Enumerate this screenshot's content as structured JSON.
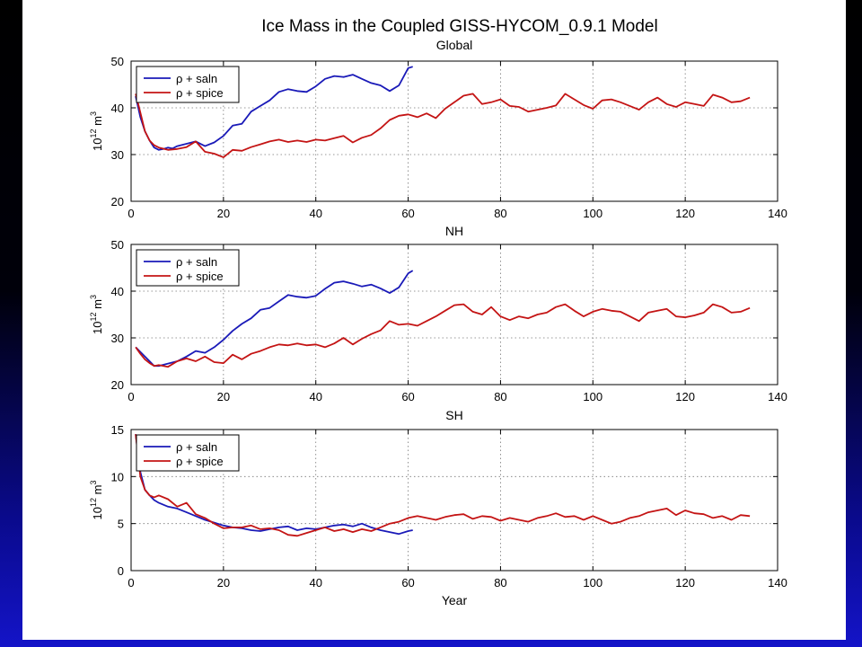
{
  "figure": {
    "title": "Ice Mass in the Coupled GISS-HYCOM_0.9.1 Model"
  },
  "colors": {
    "saln": "#1a1ab8",
    "spice": "#c41414",
    "grid": "#777777",
    "background_outer": "#000000",
    "background_outer_bottom": "#1414c8",
    "figure_background": "#ffffff"
  },
  "chart_data": [
    {
      "type": "line",
      "title": "Global",
      "xlabel": "",
      "ylabel": "10^12 m^3",
      "xlim": [
        0,
        140
      ],
      "ylim": [
        20,
        50
      ],
      "xticks": [
        0,
        20,
        40,
        60,
        80,
        100,
        120,
        140
      ],
      "yticks": [
        20,
        30,
        40,
        50
      ],
      "grid": true,
      "legend_position": "top-left",
      "series": [
        {
          "name": "ρ + saln",
          "color": "saln",
          "x": [
            1,
            2,
            3,
            4,
            5,
            6,
            7,
            8,
            9,
            10,
            12,
            14,
            16,
            18,
            20,
            22,
            24,
            26,
            28,
            30,
            32,
            34,
            36,
            38,
            40,
            42,
            44,
            46,
            48,
            50,
            52,
            54,
            56,
            58,
            60,
            61
          ],
          "y": [
            42.5,
            38,
            35,
            33,
            31.5,
            31,
            31.2,
            31.5,
            31.3,
            31.8,
            32.3,
            32.8,
            31.8,
            32.6,
            34,
            36.2,
            36.6,
            39.2,
            40.4,
            41.6,
            43.4,
            44,
            43.6,
            43.4,
            44.6,
            46.2,
            46.8,
            46.6,
            47.1,
            46.2,
            45.3,
            44.8,
            43.6,
            44.8,
            48.5,
            48.8
          ]
        },
        {
          "name": "ρ + spice",
          "color": "spice",
          "x": [
            1,
            2,
            3,
            4,
            5,
            6,
            8,
            10,
            12,
            14,
            16,
            18,
            20,
            22,
            24,
            26,
            28,
            30,
            32,
            34,
            36,
            38,
            40,
            42,
            44,
            46,
            48,
            50,
            52,
            54,
            56,
            58,
            60,
            62,
            64,
            66,
            68,
            70,
            72,
            74,
            76,
            78,
            80,
            82,
            84,
            86,
            88,
            90,
            92,
            94,
            96,
            98,
            100,
            102,
            104,
            106,
            108,
            110,
            112,
            114,
            116,
            118,
            120,
            122,
            124,
            126,
            128,
            130,
            132,
            134
          ],
          "y": [
            43,
            39,
            35,
            33,
            32,
            31.5,
            31,
            31.2,
            31.6,
            32.8,
            30.6,
            30.2,
            29.4,
            31,
            30.8,
            31.6,
            32.2,
            32.8,
            33.2,
            32.7,
            33,
            32.7,
            33.2,
            33,
            33.5,
            34,
            32.6,
            33.6,
            34.2,
            35.6,
            37.4,
            38.3,
            38.6,
            38,
            38.8,
            37.8,
            39.8,
            41.2,
            42.6,
            43,
            40.8,
            41.2,
            41.8,
            40.4,
            40.2,
            39.2,
            39.6,
            40,
            40.5,
            43,
            41.8,
            40.6,
            39.8,
            41.6,
            41.8,
            41.2,
            40.4,
            39.6,
            41.2,
            42.2,
            40.8,
            40.2,
            41.2,
            40.8,
            40.4,
            42.8,
            42.2,
            41.2,
            41.4,
            42.2
          ]
        }
      ]
    },
    {
      "type": "line",
      "title": "NH",
      "xlabel": "",
      "ylabel": "10^12 m^3",
      "xlim": [
        0,
        140
      ],
      "ylim": [
        20,
        50
      ],
      "xticks": [
        0,
        20,
        40,
        60,
        80,
        100,
        120,
        140
      ],
      "yticks": [
        20,
        30,
        40,
        50
      ],
      "grid": true,
      "legend_position": "top-left",
      "series": [
        {
          "name": "ρ + saln",
          "color": "saln",
          "x": [
            1,
            2,
            3,
            4,
            5,
            6,
            8,
            10,
            12,
            14,
            16,
            18,
            20,
            22,
            24,
            26,
            28,
            30,
            32,
            34,
            36,
            38,
            40,
            42,
            44,
            46,
            48,
            50,
            52,
            54,
            56,
            58,
            60,
            61
          ],
          "y": [
            28,
            27,
            26,
            25,
            24,
            24,
            24.5,
            25,
            26,
            27.2,
            26.8,
            28,
            29.6,
            31.5,
            33,
            34.2,
            36,
            36.4,
            37.8,
            39.2,
            38.8,
            38.6,
            39,
            40.5,
            41.8,
            42.1,
            41.6,
            41,
            41.4,
            40.6,
            39.6,
            40.8,
            43.8,
            44.4
          ]
        },
        {
          "name": "ρ + spice",
          "color": "spice",
          "x": [
            1,
            2,
            3,
            4,
            5,
            6,
            8,
            10,
            12,
            14,
            16,
            18,
            20,
            22,
            24,
            26,
            28,
            30,
            32,
            34,
            36,
            38,
            40,
            42,
            44,
            46,
            48,
            50,
            52,
            54,
            56,
            58,
            60,
            62,
            64,
            66,
            68,
            70,
            72,
            74,
            76,
            78,
            80,
            82,
            84,
            86,
            88,
            90,
            92,
            94,
            96,
            98,
            100,
            102,
            104,
            106,
            108,
            110,
            112,
            114,
            116,
            118,
            120,
            122,
            124,
            126,
            128,
            130,
            132,
            134
          ],
          "y": [
            28,
            26.6,
            25.4,
            24.6,
            24,
            24.2,
            23.8,
            25,
            25.6,
            25,
            26,
            24.8,
            24.6,
            26.4,
            25.4,
            26.6,
            27.2,
            28,
            28.6,
            28.4,
            28.8,
            28.4,
            28.6,
            28,
            28.8,
            30,
            28.6,
            29.8,
            30.8,
            31.6,
            33.6,
            32.8,
            33,
            32.6,
            33.6,
            34.6,
            35.8,
            37,
            37.2,
            35.6,
            35,
            36.6,
            34.6,
            33.8,
            34.6,
            34.2,
            35,
            35.4,
            36.6,
            37.2,
            35.8,
            34.6,
            35.6,
            36.2,
            35.8,
            35.6,
            34.6,
            33.6,
            35.4,
            35.8,
            36.2,
            34.6,
            34.4,
            34.8,
            35.4,
            37.2,
            36.6,
            35.4,
            35.6,
            36.4
          ]
        }
      ]
    },
    {
      "type": "line",
      "title": "SH",
      "xlabel": "Year",
      "ylabel": "10^12 m^3",
      "xlim": [
        0,
        140
      ],
      "ylim": [
        0,
        15
      ],
      "xticks": [
        0,
        20,
        40,
        60,
        80,
        100,
        120,
        140
      ],
      "yticks": [
        0,
        5,
        10,
        15
      ],
      "grid": true,
      "legend_position": "top-left",
      "series": [
        {
          "name": "ρ + saln",
          "color": "saln",
          "x": [
            1,
            2,
            3,
            4,
            5,
            6,
            8,
            10,
            12,
            14,
            16,
            18,
            20,
            22,
            24,
            26,
            28,
            30,
            32,
            34,
            36,
            38,
            40,
            42,
            44,
            46,
            48,
            50,
            52,
            54,
            56,
            58,
            60,
            61
          ],
          "y": [
            14.5,
            10.5,
            8.6,
            8,
            7.5,
            7.2,
            6.8,
            6.6,
            6.2,
            5.8,
            5.4,
            5.1,
            4.8,
            4.6,
            4.5,
            4.3,
            4.2,
            4.4,
            4.6,
            4.7,
            4.3,
            4.5,
            4.4,
            4.6,
            4.8,
            4.9,
            4.7,
            5,
            4.6,
            4.3,
            4.1,
            3.9,
            4.2,
            4.3
          ]
        },
        {
          "name": "ρ + spice",
          "color": "spice",
          "x": [
            1,
            2,
            3,
            4,
            5,
            6,
            8,
            10,
            12,
            14,
            16,
            18,
            20,
            22,
            24,
            26,
            28,
            30,
            32,
            34,
            36,
            38,
            40,
            42,
            44,
            46,
            48,
            50,
            52,
            54,
            56,
            58,
            60,
            62,
            64,
            66,
            68,
            70,
            72,
            74,
            76,
            78,
            80,
            82,
            84,
            86,
            88,
            90,
            92,
            94,
            96,
            98,
            100,
            102,
            104,
            106,
            108,
            110,
            112,
            114,
            116,
            118,
            120,
            122,
            124,
            126,
            128,
            130,
            132,
            134
          ],
          "y": [
            14.5,
            10,
            8.6,
            8,
            7.8,
            8,
            7.6,
            6.8,
            7.2,
            6,
            5.6,
            5,
            4.5,
            4.6,
            4.6,
            4.8,
            4.4,
            4.5,
            4.3,
            3.8,
            3.7,
            4,
            4.3,
            4.6,
            4.2,
            4.4,
            4.1,
            4.4,
            4.2,
            4.6,
            5,
            5.2,
            5.6,
            5.8,
            5.6,
            5.4,
            5.7,
            5.9,
            6,
            5.5,
            5.8,
            5.7,
            5.3,
            5.6,
            5.4,
            5.2,
            5.6,
            5.8,
            6.1,
            5.7,
            5.8,
            5.4,
            5.8,
            5.4,
            5,
            5.2,
            5.6,
            5.8,
            6.2,
            6.4,
            6.6,
            5.9,
            6.4,
            6.1,
            6,
            5.6,
            5.8,
            5.4,
            5.9,
            5.8
          ]
        }
      ]
    }
  ]
}
